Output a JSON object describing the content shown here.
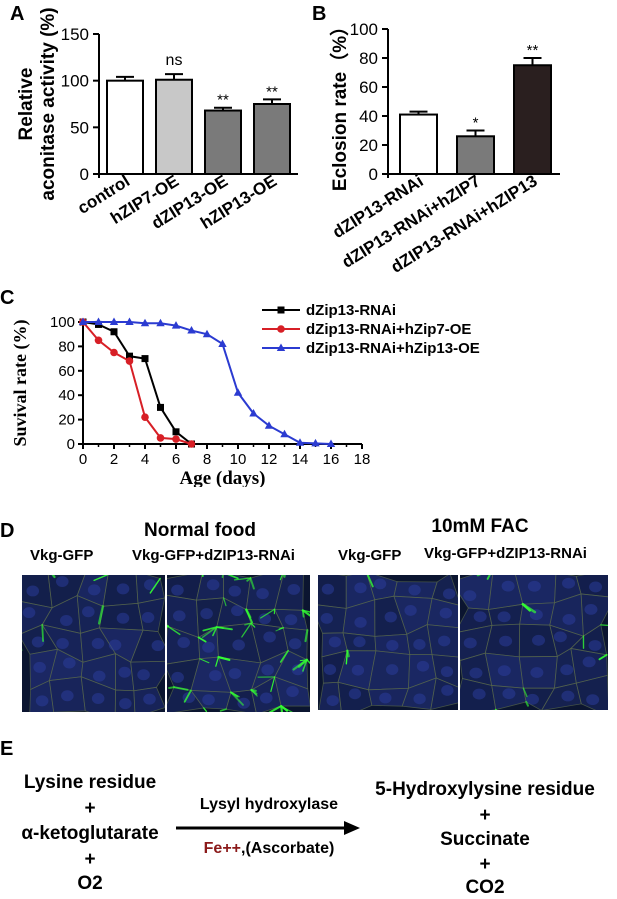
{
  "colors": {
    "black": "#000000",
    "light_gray": "#c8c8c8",
    "dark_gray": "#7a7a7a",
    "very_dark": "#2a1f1f",
    "red": "#d71f26",
    "blue": "#2b3bd1",
    "fe_color": "#8b1a1a",
    "micro_bg": "#0b1530",
    "micro_cell": "#22307a",
    "micro_green": "#33ff33"
  },
  "panel_a": {
    "letter": "A",
    "chart_data": {
      "type": "bar",
      "categories": [
        "control",
        "hZIP7-OE",
        "dZIP13-OE",
        "hZIP13-OE"
      ],
      "values": [
        100,
        101,
        68,
        75
      ],
      "errors": [
        4,
        6,
        3,
        5
      ],
      "significance": [
        "",
        "ns",
        "**",
        "**"
      ],
      "ylabel_line1": "Relative",
      "ylabel_line2": "aconitase activity (%)",
      "ylim": [
        0,
        150
      ],
      "yticks": [
        "0",
        "50",
        "100",
        "150"
      ],
      "bar_fills": [
        "#ffffff",
        "#c8c8c8",
        "#7a7a7a",
        "#7a7a7a"
      ]
    }
  },
  "panel_b": {
    "letter": "B",
    "chart_data": {
      "type": "bar",
      "categories": [
        "dZIP13-RNAi",
        "dZIP13-RNAi+hZIP7",
        "dZIP13-RNAi+hZIP13"
      ],
      "values": [
        41,
        26,
        75
      ],
      "errors": [
        2,
        4,
        5
      ],
      "significance": [
        "",
        "*",
        "**"
      ],
      "ylabel": "Eclosion rate（%）",
      "ylim": [
        0,
        100
      ],
      "yticks": [
        "0",
        "20",
        "40",
        "60",
        "80",
        "100"
      ],
      "bar_fills": [
        "#ffffff",
        "#7a7a7a",
        "#2a1f1f"
      ]
    }
  },
  "panel_c": {
    "letter": "C",
    "chart_data": {
      "type": "line",
      "xlabel": "Age (days)",
      "ylabel": "Suvival rate (%)",
      "xlim": [
        0,
        18
      ],
      "ylim": [
        0,
        100
      ],
      "xticks": [
        "0",
        "2",
        "4",
        "6",
        "8",
        "10",
        "12",
        "14",
        "16",
        "18"
      ],
      "yticks": [
        "0",
        "20",
        "40",
        "60",
        "80",
        "100"
      ],
      "series": [
        {
          "name": "dZip13-RNAi",
          "color": "#000000",
          "marker": "square",
          "x": [
            0,
            1,
            2,
            3,
            4,
            5,
            6,
            7
          ],
          "y": [
            100,
            98,
            92,
            72,
            70,
            30,
            10,
            0
          ]
        },
        {
          "name": "dZip13-RNAi+hZip7-OE",
          "color": "#d71f26",
          "marker": "circle",
          "x": [
            0,
            1,
            2,
            3,
            4,
            5,
            6,
            7
          ],
          "y": [
            100,
            85,
            75,
            68,
            22,
            5,
            4,
            0
          ]
        },
        {
          "name": "dZip13-RNAi+hZip13-OE",
          "color": "#2b3bd1",
          "marker": "triangle",
          "x": [
            0,
            1,
            2,
            3,
            4,
            5,
            6,
            7,
            8,
            9,
            10,
            11,
            12,
            13,
            14,
            15,
            16
          ],
          "y": [
            100,
            100,
            100,
            100,
            99,
            99,
            97,
            93,
            90,
            82,
            42,
            25,
            15,
            8,
            1,
            0.5,
            0
          ]
        }
      ]
    }
  },
  "panel_d": {
    "letter": "D",
    "group_left": "Normal food",
    "group_right": "10mM FAC",
    "labels": [
      "Vkg-GFP",
      "Vkg-GFP+dZIP13-RNAi",
      "Vkg-GFP",
      "Vkg-GFP+dZIP13-RNAi"
    ]
  },
  "panel_e": {
    "letter": "E",
    "left": [
      "Lysine residue",
      "+",
      "α-ketoglutarate",
      "+",
      "O2"
    ],
    "enzyme": "Lysyl hydroxylase",
    "cofactor_fe": "Fe++",
    "cofactor_rest": ",(Ascorbate)",
    "right": [
      "5-Hydroxylysine residue",
      "+",
      "Succinate",
      "+",
      "CO2"
    ]
  }
}
